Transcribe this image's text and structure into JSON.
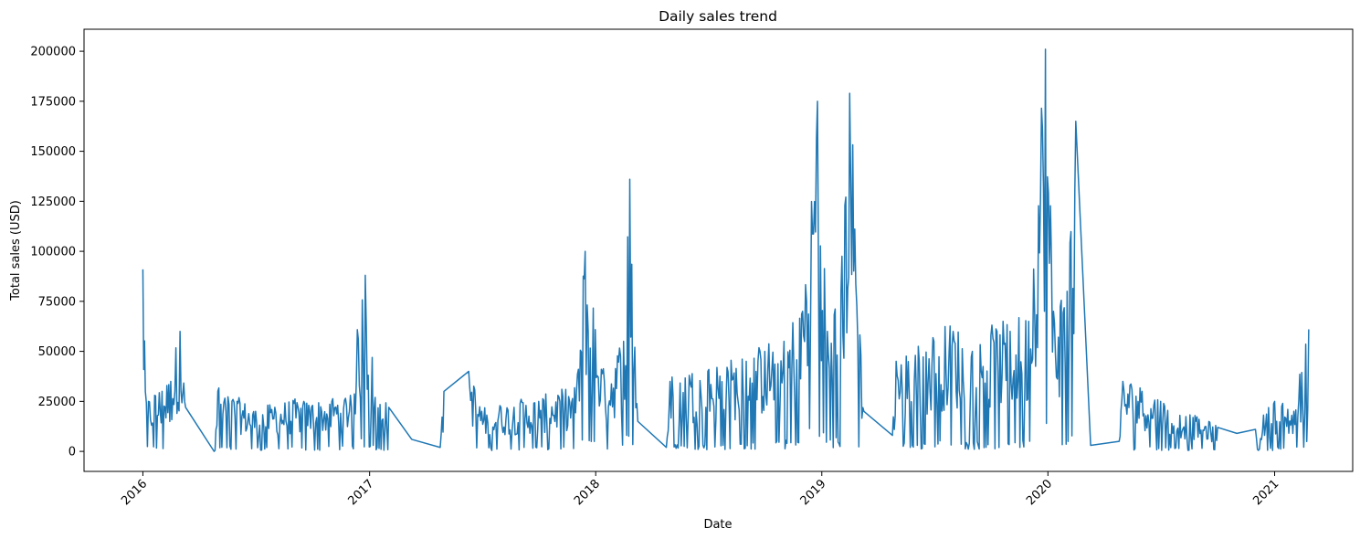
{
  "chart_data": {
    "type": "line",
    "title": "Daily sales trend",
    "xlabel": "Date",
    "ylabel": "Total sales (USD)",
    "x_ticks": [
      "2016",
      "2017",
      "2018",
      "2019",
      "2020",
      "2021"
    ],
    "y_ticks": [
      "0",
      "25000",
      "50000",
      "75000",
      "100000",
      "125000",
      "150000",
      "175000",
      "200000"
    ],
    "xlim": [
      "2015-09-28",
      "2021-05-07"
    ],
    "ylim": [
      -10000,
      211000
    ],
    "grid": false,
    "legend": "none",
    "line_color": "#1f77b4",
    "series": [
      {
        "x": [
          "2016-01-01",
          "2016-01-05",
          "2016-01-10",
          "2016-01-20",
          "2016-02-01",
          "2016-02-15",
          "2016-03-01",
          "2016-03-10",
          "2016-04-25",
          "2016-05-01",
          "2016-06-01",
          "2016-07-01",
          "2016-08-01",
          "2016-09-01",
          "2016-10-01",
          "2016-11-01",
          "2016-12-01",
          "2016-12-25",
          "2017-01-10",
          "2017-02-01",
          "2017-03-10",
          "2017-04-25",
          "2017-05-01",
          "2017-06-10",
          "2017-07-01",
          "2017-08-01",
          "2017-09-01",
          "2017-10-01",
          "2017-11-01",
          "2017-12-01",
          "2017-12-15",
          "2018-01-15",
          "2018-02-15",
          "2018-02-25",
          "2018-03-10",
          "2018-04-25",
          "2018-05-01",
          "2018-06-01",
          "2018-07-01",
          "2018-08-01",
          "2018-09-01",
          "2018-10-01",
          "2018-11-01",
          "2018-12-01",
          "2018-12-25",
          "2019-01-10",
          "2019-02-01",
          "2019-02-15",
          "2019-03-10",
          "2019-04-25",
          "2019-05-01",
          "2019-06-01",
          "2019-07-01",
          "2019-08-01",
          "2019-09-01",
          "2019-10-01",
          "2019-11-01",
          "2019-12-01",
          "2019-12-28",
          "2020-01-10",
          "2020-02-01",
          "2020-02-15",
          "2020-03-10",
          "2020-04-25",
          "2020-05-01",
          "2020-06-01",
          "2020-07-01",
          "2020-08-01",
          "2020-09-01",
          "2020-10-01",
          "2020-11-01",
          "2020-12-01",
          "2021-01-01",
          "2021-02-01",
          "2021-02-25"
        ],
        "y": [
          91000,
          30000,
          25000,
          28000,
          30000,
          35000,
          60000,
          22000,
          0,
          30000,
          25000,
          20000,
          22000,
          24000,
          23000,
          25000,
          28000,
          88000,
          27000,
          22000,
          6000,
          2000,
          30000,
          40000,
          20000,
          22000,
          24000,
          25000,
          28000,
          30000,
          100000,
          35000,
          55000,
          136000,
          15000,
          2000,
          35000,
          38000,
          40000,
          42000,
          45000,
          50000,
          55000,
          70000,
          175000,
          60000,
          80000,
          179000,
          20000,
          8000,
          45000,
          48000,
          55000,
          60000,
          50000,
          58000,
          60000,
          65000,
          201000,
          70000,
          80000,
          165000,
          3000,
          5000,
          35000,
          30000,
          25000,
          18000,
          16000,
          12000,
          9000,
          11000,
          25000,
          20000,
          61000
        ]
      }
    ]
  }
}
